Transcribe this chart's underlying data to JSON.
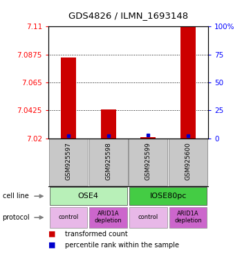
{
  "title": "GDS4826 / ILMN_1693148",
  "samples": [
    "GSM925597",
    "GSM925598",
    "GSM925599",
    "GSM925600"
  ],
  "red_values": [
    7.085,
    7.043,
    7.021,
    7.11
  ],
  "blue_values": [
    2.0,
    2.0,
    3.0,
    2.0
  ],
  "y_min": 7.02,
  "y_max": 7.11,
  "y_ticks": [
    7.02,
    7.0425,
    7.065,
    7.0875,
    7.11
  ],
  "y_tick_labels": [
    "7.02",
    "7.0425",
    "7.065",
    "7.0875",
    "7.11"
  ],
  "y2_ticks": [
    0,
    25,
    50,
    75,
    100
  ],
  "y2_tick_labels": [
    "0",
    "25",
    "50",
    "75",
    "100%"
  ],
  "cell_line_labels": [
    "OSE4",
    "IOSE80pc"
  ],
  "cell_line_spans": [
    [
      0,
      2
    ],
    [
      2,
      4
    ]
  ],
  "cell_line_colors": [
    "#b8f0b8",
    "#44cc44"
  ],
  "protocol_labels": [
    "control",
    "ARID1A\ndepletion",
    "control",
    "ARID1A\ndepletion"
  ],
  "protocol_colors": [
    "#e8b8e8",
    "#cc66cc",
    "#e8b8e8",
    "#cc66cc"
  ],
  "bar_color": "#cc0000",
  "dot_color": "#0000cc",
  "sample_box_color": "#c8c8c8",
  "tick_fontsize": 7.5
}
